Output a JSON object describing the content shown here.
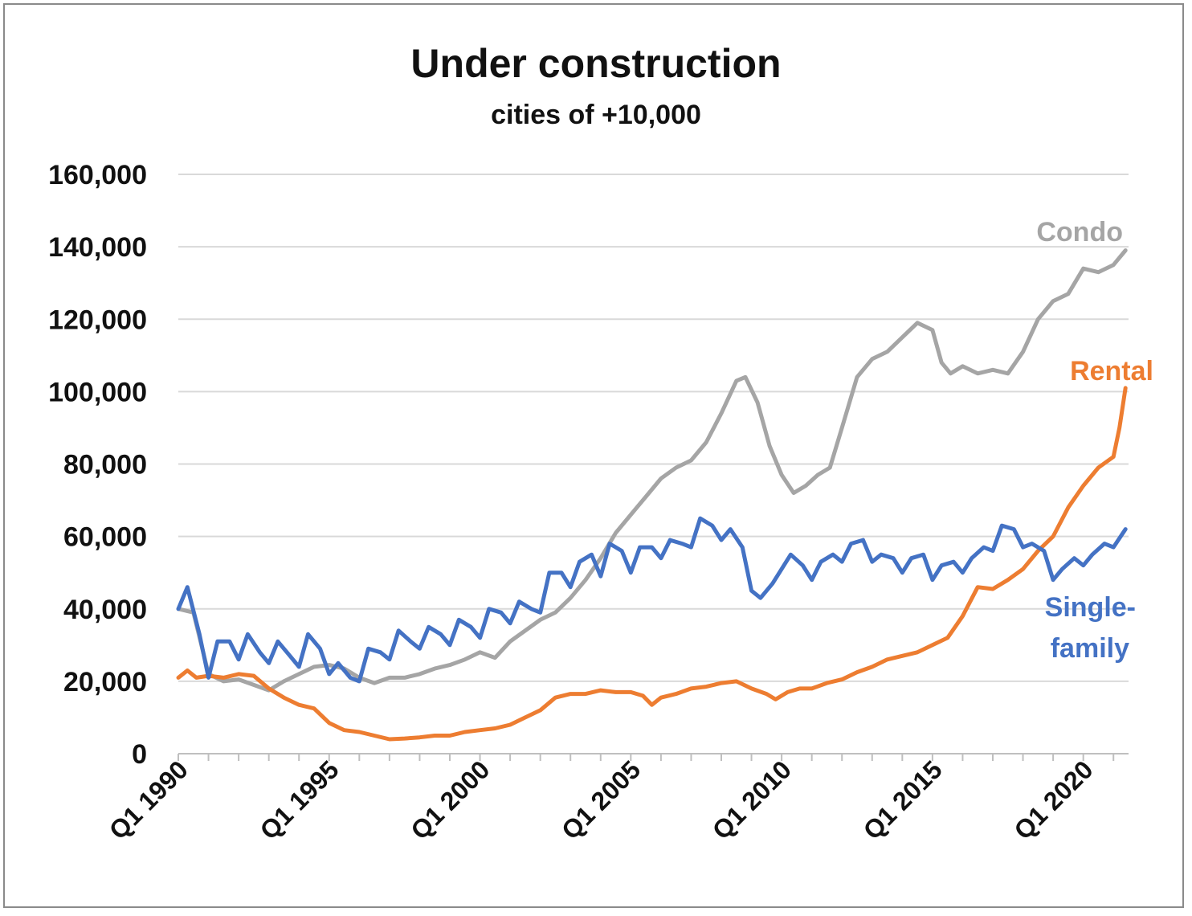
{
  "chart_data": {
    "type": "line",
    "title": "Under construction",
    "subtitle": "cities of +10,000",
    "xlabel": "",
    "ylabel": "",
    "ylim": [
      0,
      160000
    ],
    "yticks": [
      0,
      20000,
      40000,
      60000,
      80000,
      100000,
      120000,
      140000,
      160000
    ],
    "ytick_labels": [
      "0",
      "20,000",
      "40,000",
      "60,000",
      "80,000",
      "100,000",
      "120,000",
      "140,000",
      "160,000"
    ],
    "xlim": [
      1990.0,
      2021.5
    ],
    "xticks": [
      1990,
      1995,
      2000,
      2005,
      2010,
      2015,
      2020
    ],
    "xtick_labels": [
      "Q1 1990",
      "Q1 1995",
      "Q1 2000",
      "Q1 2005",
      "Q1 2010",
      "Q1 2015",
      "Q1 2020"
    ],
    "grid": "horizontal",
    "legend": "inline labels at right end of lines",
    "series": [
      {
        "name": "Condo",
        "color": "#A5A5A5",
        "points": [
          [
            1990.0,
            40000
          ],
          [
            1990.5,
            39000
          ],
          [
            1991.0,
            22000
          ],
          [
            1991.5,
            20000
          ],
          [
            1992.0,
            20500
          ],
          [
            1992.5,
            19000
          ],
          [
            1993.0,
            17500
          ],
          [
            1993.5,
            20000
          ],
          [
            1994.0,
            22000
          ],
          [
            1994.5,
            24000
          ],
          [
            1995.0,
            24500
          ],
          [
            1995.5,
            23500
          ],
          [
            1996.0,
            21000
          ],
          [
            1996.5,
            19500
          ],
          [
            1997.0,
            21000
          ],
          [
            1997.5,
            21000
          ],
          [
            1998.0,
            22000
          ],
          [
            1998.5,
            23500
          ],
          [
            1999.0,
            24500
          ],
          [
            1999.5,
            26000
          ],
          [
            2000.0,
            28000
          ],
          [
            2000.5,
            26500
          ],
          [
            2001.0,
            31000
          ],
          [
            2001.5,
            34000
          ],
          [
            2002.0,
            37000
          ],
          [
            2002.5,
            39000
          ],
          [
            2003.0,
            43000
          ],
          [
            2003.5,
            48000
          ],
          [
            2004.0,
            54000
          ],
          [
            2004.5,
            61000
          ],
          [
            2005.0,
            66000
          ],
          [
            2005.5,
            71000
          ],
          [
            2006.0,
            76000
          ],
          [
            2006.5,
            79000
          ],
          [
            2007.0,
            81000
          ],
          [
            2007.5,
            86000
          ],
          [
            2008.0,
            94000
          ],
          [
            2008.5,
            103000
          ],
          [
            2008.8,
            104000
          ],
          [
            2009.2,
            97000
          ],
          [
            2009.6,
            85000
          ],
          [
            2010.0,
            77000
          ],
          [
            2010.4,
            72000
          ],
          [
            2010.8,
            74000
          ],
          [
            2011.2,
            77000
          ],
          [
            2011.6,
            79000
          ],
          [
            2012.0,
            90000
          ],
          [
            2012.5,
            104000
          ],
          [
            2013.0,
            109000
          ],
          [
            2013.5,
            111000
          ],
          [
            2014.0,
            115000
          ],
          [
            2014.5,
            119000
          ],
          [
            2015.0,
            117000
          ],
          [
            2015.3,
            108000
          ],
          [
            2015.6,
            105000
          ],
          [
            2016.0,
            107000
          ],
          [
            2016.5,
            105000
          ],
          [
            2017.0,
            106000
          ],
          [
            2017.5,
            105000
          ],
          [
            2018.0,
            111000
          ],
          [
            2018.5,
            120000
          ],
          [
            2019.0,
            125000
          ],
          [
            2019.5,
            127000
          ],
          [
            2020.0,
            134000
          ],
          [
            2020.5,
            133000
          ],
          [
            2021.0,
            135000
          ],
          [
            2021.4,
            139000
          ]
        ]
      },
      {
        "name": "Rental",
        "color": "#ED7D31",
        "points": [
          [
            1990.0,
            21000
          ],
          [
            1990.3,
            23000
          ],
          [
            1990.6,
            21000
          ],
          [
            1991.0,
            21500
          ],
          [
            1991.5,
            21000
          ],
          [
            1992.0,
            22000
          ],
          [
            1992.5,
            21500
          ],
          [
            1993.0,
            18000
          ],
          [
            1993.5,
            15500
          ],
          [
            1994.0,
            13500
          ],
          [
            1994.5,
            12500
          ],
          [
            1995.0,
            8500
          ],
          [
            1995.5,
            6500
          ],
          [
            1996.0,
            6000
          ],
          [
            1996.5,
            5000
          ],
          [
            1997.0,
            4000
          ],
          [
            1997.5,
            4200
          ],
          [
            1998.0,
            4500
          ],
          [
            1998.5,
            5000
          ],
          [
            1999.0,
            5000
          ],
          [
            1999.5,
            6000
          ],
          [
            2000.0,
            6500
          ],
          [
            2000.5,
            7000
          ],
          [
            2001.0,
            8000
          ],
          [
            2001.5,
            10000
          ],
          [
            2002.0,
            12000
          ],
          [
            2002.5,
            15500
          ],
          [
            2003.0,
            16500
          ],
          [
            2003.5,
            16500
          ],
          [
            2004.0,
            17500
          ],
          [
            2004.5,
            17000
          ],
          [
            2005.0,
            17000
          ],
          [
            2005.4,
            16000
          ],
          [
            2005.7,
            13500
          ],
          [
            2006.0,
            15500
          ],
          [
            2006.5,
            16500
          ],
          [
            2007.0,
            18000
          ],
          [
            2007.5,
            18500
          ],
          [
            2008.0,
            19500
          ],
          [
            2008.5,
            20000
          ],
          [
            2009.0,
            18000
          ],
          [
            2009.5,
            16500
          ],
          [
            2009.8,
            15000
          ],
          [
            2010.2,
            17000
          ],
          [
            2010.6,
            18000
          ],
          [
            2011.0,
            18000
          ],
          [
            2011.5,
            19500
          ],
          [
            2012.0,
            20500
          ],
          [
            2012.5,
            22500
          ],
          [
            2013.0,
            24000
          ],
          [
            2013.5,
            26000
          ],
          [
            2014.0,
            27000
          ],
          [
            2014.5,
            28000
          ],
          [
            2015.0,
            30000
          ],
          [
            2015.5,
            32000
          ],
          [
            2016.0,
            38000
          ],
          [
            2016.5,
            46000
          ],
          [
            2017.0,
            45500
          ],
          [
            2017.5,
            48000
          ],
          [
            2018.0,
            51000
          ],
          [
            2018.5,
            56000
          ],
          [
            2019.0,
            60000
          ],
          [
            2019.5,
            68000
          ],
          [
            2020.0,
            74000
          ],
          [
            2020.5,
            79000
          ],
          [
            2021.0,
            82000
          ],
          [
            2021.2,
            90000
          ],
          [
            2021.4,
            101000
          ]
        ]
      },
      {
        "name": "Single-family",
        "label_lines": [
          "Single-",
          "family"
        ],
        "color": "#4472C4",
        "points": [
          [
            1990.0,
            40000
          ],
          [
            1990.3,
            46000
          ],
          [
            1990.7,
            33000
          ],
          [
            1991.0,
            21000
          ],
          [
            1991.3,
            31000
          ],
          [
            1991.7,
            31000
          ],
          [
            1992.0,
            26000
          ],
          [
            1992.3,
            33000
          ],
          [
            1992.7,
            28000
          ],
          [
            1993.0,
            25000
          ],
          [
            1993.3,
            31000
          ],
          [
            1993.7,
            27000
          ],
          [
            1994.0,
            24000
          ],
          [
            1994.3,
            33000
          ],
          [
            1994.7,
            29000
          ],
          [
            1995.0,
            22000
          ],
          [
            1995.3,
            25000
          ],
          [
            1995.7,
            21000
          ],
          [
            1996.0,
            20000
          ],
          [
            1996.3,
            29000
          ],
          [
            1996.7,
            28000
          ],
          [
            1997.0,
            26000
          ],
          [
            1997.3,
            34000
          ],
          [
            1997.7,
            31000
          ],
          [
            1998.0,
            29000
          ],
          [
            1998.3,
            35000
          ],
          [
            1998.7,
            33000
          ],
          [
            1999.0,
            30000
          ],
          [
            1999.3,
            37000
          ],
          [
            1999.7,
            35000
          ],
          [
            2000.0,
            32000
          ],
          [
            2000.3,
            40000
          ],
          [
            2000.7,
            39000
          ],
          [
            2001.0,
            36000
          ],
          [
            2001.3,
            42000
          ],
          [
            2001.7,
            40000
          ],
          [
            2002.0,
            39000
          ],
          [
            2002.3,
            50000
          ],
          [
            2002.7,
            50000
          ],
          [
            2003.0,
            46000
          ],
          [
            2003.3,
            53000
          ],
          [
            2003.7,
            55000
          ],
          [
            2004.0,
            49000
          ],
          [
            2004.3,
            58000
          ],
          [
            2004.7,
            56000
          ],
          [
            2005.0,
            50000
          ],
          [
            2005.3,
            57000
          ],
          [
            2005.7,
            57000
          ],
          [
            2006.0,
            54000
          ],
          [
            2006.3,
            59000
          ],
          [
            2006.7,
            58000
          ],
          [
            2007.0,
            57000
          ],
          [
            2007.3,
            65000
          ],
          [
            2007.7,
            63000
          ],
          [
            2008.0,
            59000
          ],
          [
            2008.3,
            62000
          ],
          [
            2008.7,
            57000
          ],
          [
            2009.0,
            45000
          ],
          [
            2009.3,
            43000
          ],
          [
            2009.7,
            47000
          ],
          [
            2010.0,
            51000
          ],
          [
            2010.3,
            55000
          ],
          [
            2010.7,
            52000
          ],
          [
            2011.0,
            48000
          ],
          [
            2011.3,
            53000
          ],
          [
            2011.7,
            55000
          ],
          [
            2012.0,
            53000
          ],
          [
            2012.3,
            58000
          ],
          [
            2012.7,
            59000
          ],
          [
            2013.0,
            53000
          ],
          [
            2013.3,
            55000
          ],
          [
            2013.7,
            54000
          ],
          [
            2014.0,
            50000
          ],
          [
            2014.3,
            54000
          ],
          [
            2014.7,
            55000
          ],
          [
            2015.0,
            48000
          ],
          [
            2015.3,
            52000
          ],
          [
            2015.7,
            53000
          ],
          [
            2016.0,
            50000
          ],
          [
            2016.3,
            54000
          ],
          [
            2016.7,
            57000
          ],
          [
            2017.0,
            56000
          ],
          [
            2017.3,
            63000
          ],
          [
            2017.7,
            62000
          ],
          [
            2018.0,
            57000
          ],
          [
            2018.3,
            58000
          ],
          [
            2018.7,
            56000
          ],
          [
            2019.0,
            48000
          ],
          [
            2019.3,
            51000
          ],
          [
            2019.7,
            54000
          ],
          [
            2020.0,
            52000
          ],
          [
            2020.3,
            55000
          ],
          [
            2020.7,
            58000
          ],
          [
            2021.0,
            57000
          ],
          [
            2021.4,
            62000
          ]
        ]
      }
    ]
  }
}
